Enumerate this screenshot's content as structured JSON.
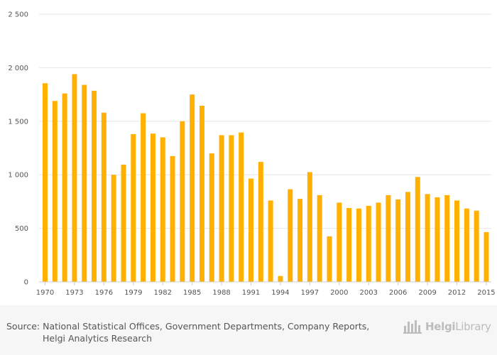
{
  "chart_data": {
    "type": "bar",
    "title": "",
    "xlabel": "",
    "ylabel": "",
    "ylim": [
      0,
      2500
    ],
    "yticks": [
      0,
      500,
      1000,
      1500,
      2000,
      2500
    ],
    "ytick_labels": [
      "0",
      "500",
      "1 000",
      "1 500",
      "2 000",
      "2 500"
    ],
    "categories": [
      1970,
      1971,
      1972,
      1973,
      1974,
      1975,
      1976,
      1977,
      1978,
      1979,
      1980,
      1981,
      1982,
      1983,
      1984,
      1985,
      1986,
      1987,
      1988,
      1989,
      1990,
      1991,
      1992,
      1993,
      1994,
      1995,
      1996,
      1997,
      1998,
      1999,
      2000,
      2001,
      2002,
      2003,
      2004,
      2005,
      2006,
      2007,
      2008,
      2009,
      2010,
      2011,
      2012,
      2013,
      2014,
      2015
    ],
    "xtick_labels": [
      "1970",
      "1973",
      "1976",
      "1979",
      "1982",
      "1985",
      "1988",
      "1991",
      "1994",
      "1997",
      "2000",
      "2003",
      "2006",
      "2009",
      "2012",
      "2015"
    ],
    "values": [
      1855,
      1690,
      1760,
      1940,
      1840,
      1785,
      1580,
      1000,
      1095,
      1380,
      1575,
      1385,
      1350,
      1175,
      1500,
      1750,
      1645,
      1200,
      1370,
      1370,
      1395,
      965,
      1120,
      760,
      55,
      865,
      775,
      1025,
      810,
      425,
      740,
      690,
      685,
      710,
      740,
      810,
      770,
      840,
      980,
      820,
      790,
      810,
      760,
      685,
      665,
      465
    ],
    "bar_color": "#ffb000",
    "grid": true
  },
  "source": {
    "prefix": "Source:",
    "line1": "National Statistical Offices, Government Departments, Company Reports,",
    "line2": "Helgi Analytics Research"
  },
  "brand": {
    "name_bold": "Helgi",
    "name_rest": "Library",
    "icon": "bar-chart-logo-icon"
  }
}
